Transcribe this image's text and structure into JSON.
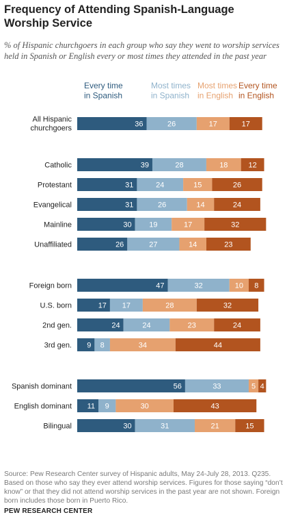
{
  "title": "Frequency of Attending Spanish-Language  Worship Service",
  "subtitle": "% of Hispanic churchgoers in each group who say they went to worship services held in Spanish or English every or most times they attended in the past year",
  "footer": {
    "source_lines": [
      "Source: Pew Research Center survey of Hispanic adults, May 24-July 28, 2013. Q235.",
      "Based on those who say they ever attend worship services. Figures for those saying “don’t",
      "know” or that they did not attend worship services in the past year are not shown. Foreign",
      "born includes those born in Puerto Rico."
    ],
    "org": "PEW RESEARCH CENTER"
  },
  "colors": {
    "every_spanish": "#2e5b7e",
    "most_spanish": "#8fb2cb",
    "most_english": "#e6a16f",
    "every_english": "#b2541f"
  },
  "chart_data": {
    "type": "bar",
    "orientation": "horizontal",
    "stacked": true,
    "legend_position": "top",
    "series": [
      {
        "name": "Every time in Spanish",
        "color": "#2e5b7e"
      },
      {
        "name": "Most times in Spanish",
        "color": "#8fb2cb"
      },
      {
        "name": "Most times in English",
        "color": "#e6a16f"
      },
      {
        "name": "Every time in English",
        "color": "#b2541f"
      }
    ],
    "rows": [
      {
        "label": "All Hispanic churchgoers",
        "values": [
          36,
          26,
          17,
          17
        ]
      },
      {
        "label": "Catholic",
        "values": [
          39,
          28,
          18,
          12
        ]
      },
      {
        "label": "Protestant",
        "values": [
          31,
          24,
          15,
          26
        ]
      },
      {
        "label": "Evangelical",
        "values": [
          31,
          26,
          14,
          24
        ]
      },
      {
        "label": "Mainline",
        "values": [
          30,
          19,
          17,
          32
        ]
      },
      {
        "label": "Unaffiliated",
        "values": [
          26,
          27,
          14,
          23
        ]
      },
      {
        "label": "Foreign born",
        "values": [
          47,
          32,
          10,
          8
        ]
      },
      {
        "label": "U.S. born",
        "values": [
          17,
          17,
          28,
          32
        ]
      },
      {
        "label": "2nd gen.",
        "values": [
          24,
          24,
          23,
          24
        ]
      },
      {
        "label": "3rd gen.",
        "values": [
          9,
          8,
          34,
          44
        ]
      },
      {
        "label": "Spanish dominant",
        "values": [
          56,
          33,
          5,
          4
        ]
      },
      {
        "label": "English dominant",
        "values": [
          11,
          9,
          30,
          43
        ]
      },
      {
        "label": "Bilingual",
        "values": [
          30,
          31,
          21,
          15
        ]
      }
    ]
  }
}
